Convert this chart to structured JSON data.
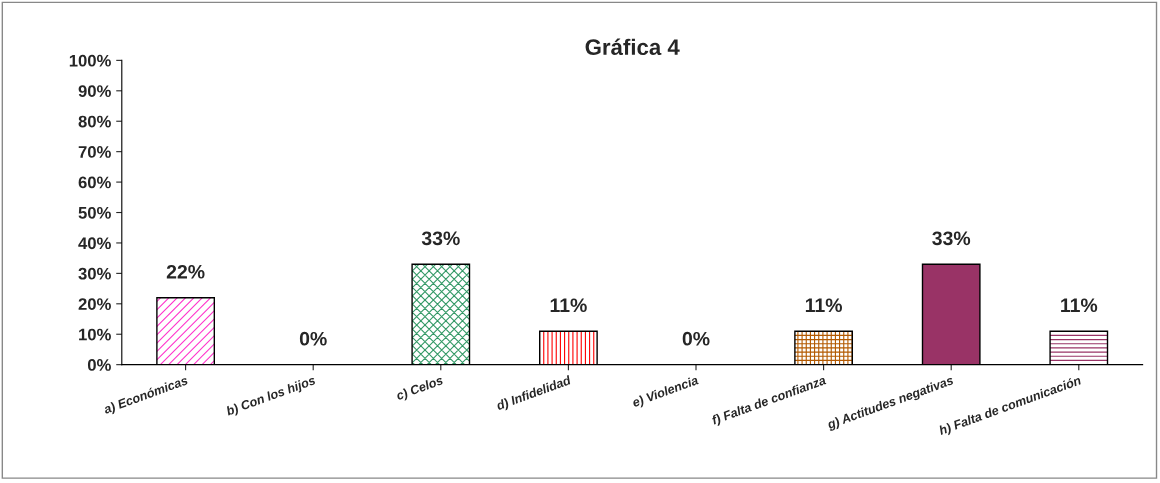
{
  "chart_data": {
    "type": "bar",
    "title": "Gráfica 4",
    "categories": [
      "a) Económicas",
      "b) Con los hijos",
      "c) Celos",
      "d) Infidelidad",
      "e) Violencia",
      "f) Falta de confianza",
      "g) Actitudes negativas",
      "h) Falta de comunicación"
    ],
    "values": [
      22,
      0,
      33,
      11,
      0,
      11,
      33,
      11
    ],
    "value_labels": [
      "22%",
      "0%",
      "33%",
      "11%",
      "0%",
      "11%",
      "33%",
      "11%"
    ],
    "colors": [
      "#ff33cc",
      "#ffffff",
      "#339966",
      "#ff0000",
      "#ffffff",
      "#b35900",
      "#993366",
      "#993366"
    ],
    "ylim": [
      0,
      100
    ],
    "yticks": [
      {
        "value": 0,
        "label": "0%"
      },
      {
        "value": 10,
        "label": "10%"
      },
      {
        "value": 20,
        "label": "20%"
      },
      {
        "value": 30,
        "label": "30%"
      },
      {
        "value": 40,
        "label": "40%"
      },
      {
        "value": 50,
        "label": "50%"
      },
      {
        "value": 60,
        "label": "60%"
      },
      {
        "value": 70,
        "label": "70%"
      },
      {
        "value": 80,
        "label": "80%"
      },
      {
        "value": 90,
        "label": "90%"
      },
      {
        "value": 100,
        "label": "100%"
      }
    ],
    "grid": false,
    "legend": false
  }
}
